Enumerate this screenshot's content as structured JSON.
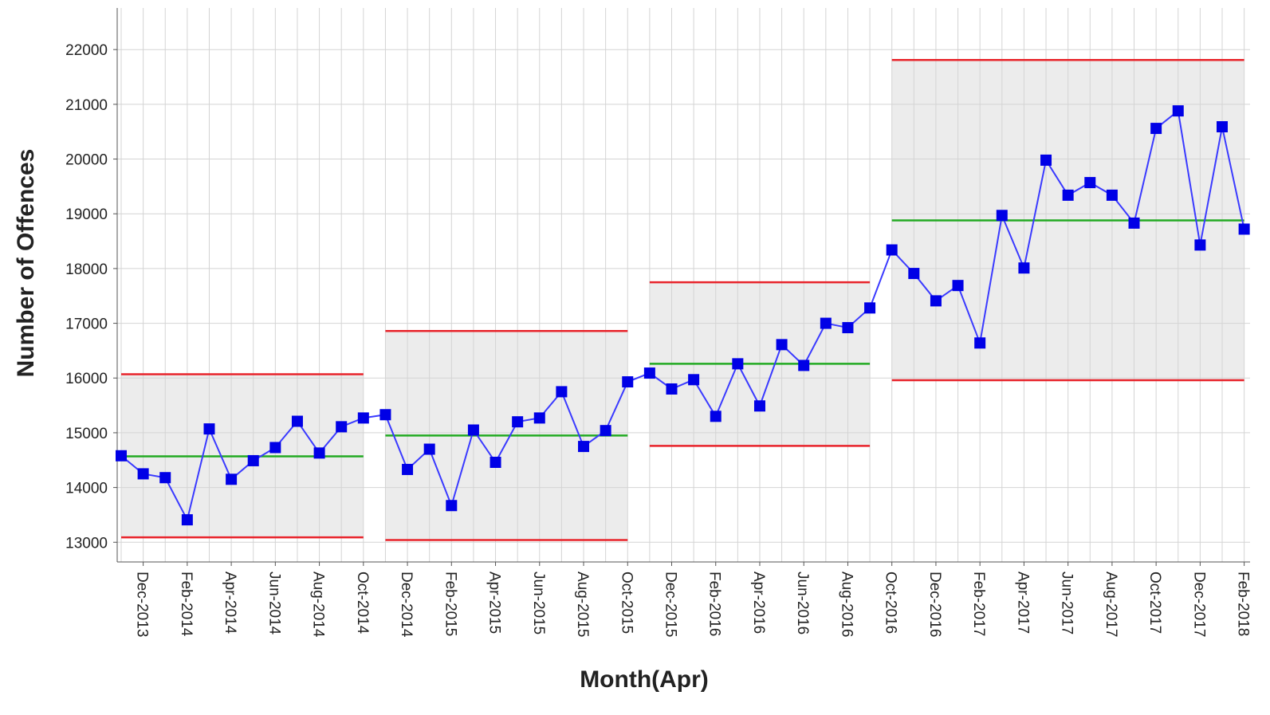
{
  "chart_data": {
    "type": "control",
    "x_label": "Month(Apr)",
    "y_label": "Number of Offences",
    "categories": [
      null,
      "Dec-2013",
      null,
      "Feb-2014",
      null,
      "Apr-2014",
      null,
      "Jun-2014",
      null,
      "Aug-2014",
      null,
      "Oct-2014",
      null,
      "Dec-2014",
      null,
      "Feb-2015",
      null,
      "Apr-2015",
      null,
      "Jun-2015",
      null,
      "Aug-2015",
      null,
      "Oct-2015",
      null,
      "Dec-2015",
      null,
      "Feb-2016",
      null,
      "Apr-2016",
      null,
      "Jun-2016",
      null,
      "Aug-2016",
      null,
      "Oct-2016",
      null,
      "Dec-2016",
      null,
      "Feb-2017",
      null,
      "Apr-2017",
      null,
      "Jun-2017",
      null,
      "Aug-2017",
      null,
      "Oct-2017",
      null,
      "Dec-2017",
      null,
      "Feb-2018"
    ],
    "values": [
      14580,
      14250,
      14180,
      13410,
      15070,
      14150,
      14490,
      14730,
      15210,
      14630,
      15110,
      15270,
      15330,
      14330,
      14700,
      13670,
      15050,
      14460,
      15200,
      15270,
      15750,
      14750,
      15040,
      15930,
      16090,
      15800,
      15970,
      15300,
      16260,
      15490,
      16610,
      16230,
      17000,
      16920,
      17280,
      18340,
      17910,
      17410,
      17690,
      16640,
      18970,
      18010,
      19980,
      19340,
      19570,
      19340,
      18830,
      20560,
      20880,
      18430,
      20590,
      18720
    ],
    "color": "#0000e6",
    "line_color": "#3a3aff",
    "center": [
      14570,
      14570,
      14570,
      14570,
      14570,
      14570,
      14570,
      14570,
      14570,
      14570,
      14570,
      14570,
      14950,
      14950,
      14950,
      14950,
      14950,
      14950,
      14950,
      14950,
      14950,
      14950,
      14950,
      14950,
      16260,
      16260,
      16260,
      16260,
      16260,
      16260,
      16260,
      16260,
      16260,
      16260,
      16260,
      18880,
      18880,
      18880,
      18880,
      18880,
      18880,
      18880,
      18880,
      18880,
      18880,
      18880,
      18880,
      18880,
      18880,
      18880,
      18880,
      18880
    ],
    "ucl": [
      16070,
      16070,
      16070,
      16070,
      16070,
      16070,
      16070,
      16070,
      16070,
      16070,
      16070,
      16070,
      16860,
      16860,
      16860,
      16860,
      16860,
      16860,
      16860,
      16860,
      16860,
      16860,
      16860,
      16860,
      17750,
      17750,
      17750,
      17750,
      17750,
      17750,
      17750,
      17750,
      17750,
      17750,
      17750,
      21810,
      21810,
      21810,
      21810,
      21810,
      21810,
      21810,
      21810,
      21810,
      21810,
      21810,
      21810,
      21810,
      21810,
      21810,
      21810,
      21810
    ],
    "lcl": [
      13090,
      13090,
      13090,
      13090,
      13090,
      13090,
      13090,
      13090,
      13090,
      13090,
      13090,
      13090,
      13040,
      13040,
      13040,
      13040,
      13040,
      13040,
      13040,
      13040,
      13040,
      13040,
      13040,
      13040,
      14760,
      14760,
      14760,
      14760,
      14760,
      14760,
      14760,
      14760,
      14760,
      14760,
      14760,
      15960,
      15960,
      15960,
      15960,
      15960,
      15960,
      15960,
      15960,
      15960,
      15960,
      15960,
      15960,
      15960,
      15960,
      15960,
      15960,
      15960
    ],
    "center_color": "#22aa22",
    "limit_color": "#e8232a",
    "band_color": "#ececec",
    "ylim": [
      12640,
      22760
    ],
    "yticks": [
      13000,
      14000,
      15000,
      16000,
      17000,
      18000,
      19000,
      20000,
      21000,
      22000
    ],
    "grid": true
  }
}
